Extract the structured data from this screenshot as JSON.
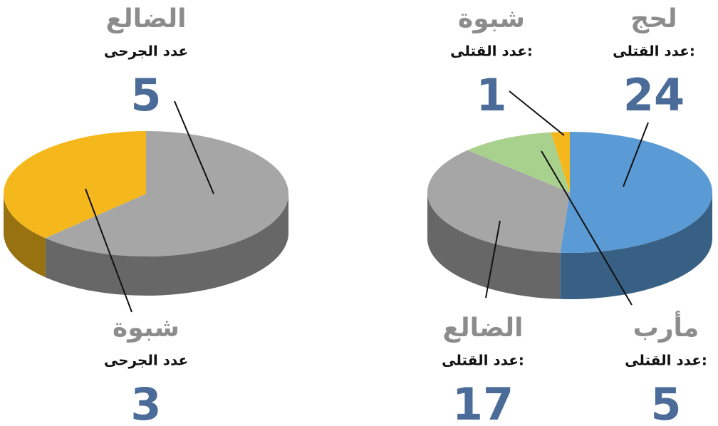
{
  "chart_data": [
    {
      "type": "pie3d",
      "measure": "عدد الجرحى",
      "categories": [
        "الضالع",
        "شبوة"
      ],
      "values": [
        5,
        3
      ],
      "colors": [
        "#a6a6a6",
        "#f5b81c"
      ]
    },
    {
      "type": "pie3d",
      "measure": "عدد القتلى:",
      "categories": [
        "لحج",
        "الضالع",
        "مأرب",
        "شبوة"
      ],
      "values": [
        24,
        17,
        5,
        1
      ],
      "colors": [
        "#5b9bd5",
        "#a6a6a6",
        "#a9d18e",
        "#f5b81c"
      ]
    }
  ]
}
